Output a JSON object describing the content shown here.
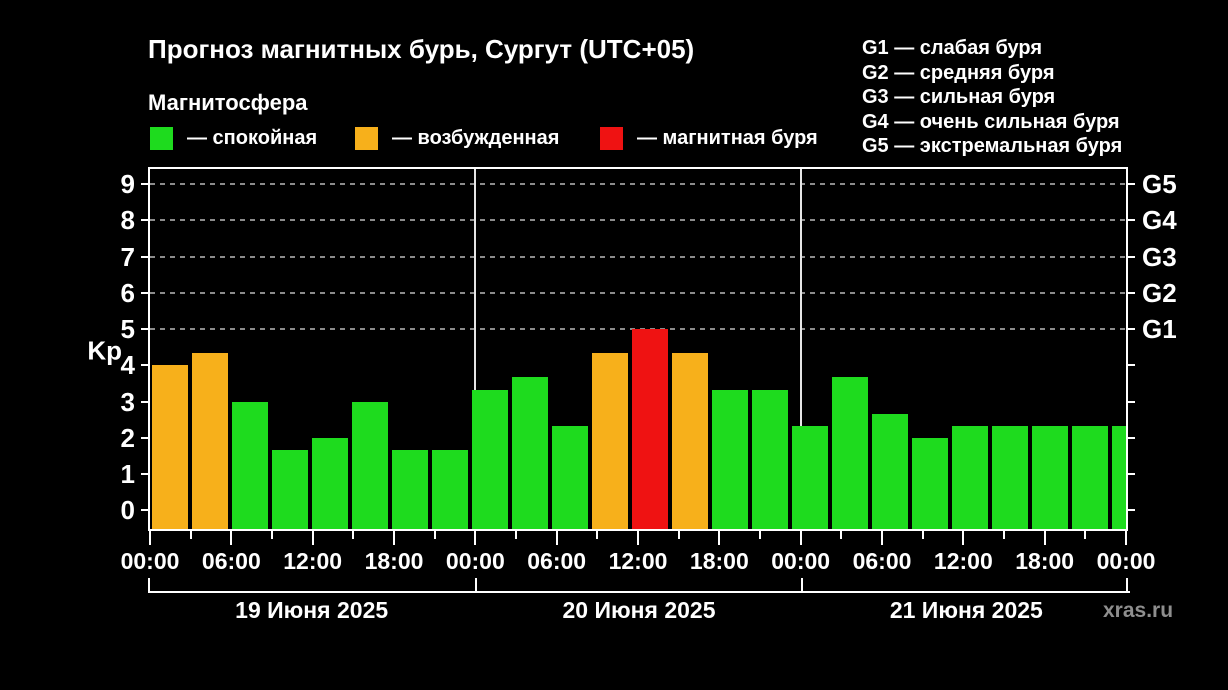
{
  "header": {
    "title": "Прогноз магнитных бурь, Сургут (UTC+05)",
    "subtitle": "Магнитосфера",
    "watermark": "xras.ru"
  },
  "legend": {
    "items": [
      {
        "label": "— спокойная",
        "status": "quiet",
        "color": "#1edb1e"
      },
      {
        "label": "— возбужденная",
        "status": "unsettled",
        "color": "#f7b01b"
      },
      {
        "label": "— магнитная буря",
        "status": "storm",
        "color": "#ef1212"
      }
    ]
  },
  "glegend": {
    "items": [
      "G1 — слабая буря",
      "G2 — средняя буря",
      "G3 — сильная буря",
      "G4 — очень сильная буря",
      "G5 — экстремальная буря"
    ]
  },
  "chart_data": {
    "type": "bar",
    "title": "Прогноз магнитных бурь, Сургут (UTC+05)",
    "ylabel": "Kp",
    "ylim": [
      0,
      9
    ],
    "y_ticks": [
      0,
      1,
      2,
      3,
      4,
      5,
      6,
      7,
      8,
      9
    ],
    "grid_levels": [
      5,
      6,
      7,
      8,
      9
    ],
    "g_scale": [
      {
        "label": "G1",
        "kp": 5
      },
      {
        "label": "G2",
        "kp": 6
      },
      {
        "label": "G3",
        "kp": 7
      },
      {
        "label": "G4",
        "kp": 8
      },
      {
        "label": "G5",
        "kp": 9
      }
    ],
    "x_tick_labels": [
      "00:00",
      "06:00",
      "12:00",
      "18:00",
      "00:00",
      "06:00",
      "12:00",
      "18:00",
      "00:00",
      "06:00",
      "12:00",
      "18:00",
      "00:00"
    ],
    "bar_interval_hours": 3,
    "days": [
      {
        "label": "19 Июня 2025",
        "values": [
          4,
          4.33,
          3,
          1.67,
          2,
          3,
          1.67,
          1.67
        ],
        "statuses": [
          "unsettled",
          "unsettled",
          "quiet",
          "quiet",
          "quiet",
          "quiet",
          "quiet",
          "quiet"
        ]
      },
      {
        "label": "20 Июня 2025",
        "values": [
          3.33,
          3.67,
          2.33,
          4.33,
          5,
          4.33,
          3.33,
          3.33
        ],
        "statuses": [
          "quiet",
          "quiet",
          "quiet",
          "unsettled",
          "storm",
          "unsettled",
          "quiet",
          "quiet"
        ]
      },
      {
        "label": "21 Июня 2025",
        "values": [
          2.33,
          3.67,
          2.67,
          2,
          2.33,
          2.33,
          2.33,
          2.33
        ],
        "statuses": [
          "quiet",
          "quiet",
          "quiet",
          "quiet",
          "quiet",
          "quiet",
          "quiet",
          "quiet"
        ]
      }
    ],
    "next_period_bar": {
      "kp": 2.33,
      "status": "quiet"
    },
    "colors": {
      "quiet": "#1edb1e",
      "unsettled": "#f7b01b",
      "storm": "#ef1212"
    }
  }
}
